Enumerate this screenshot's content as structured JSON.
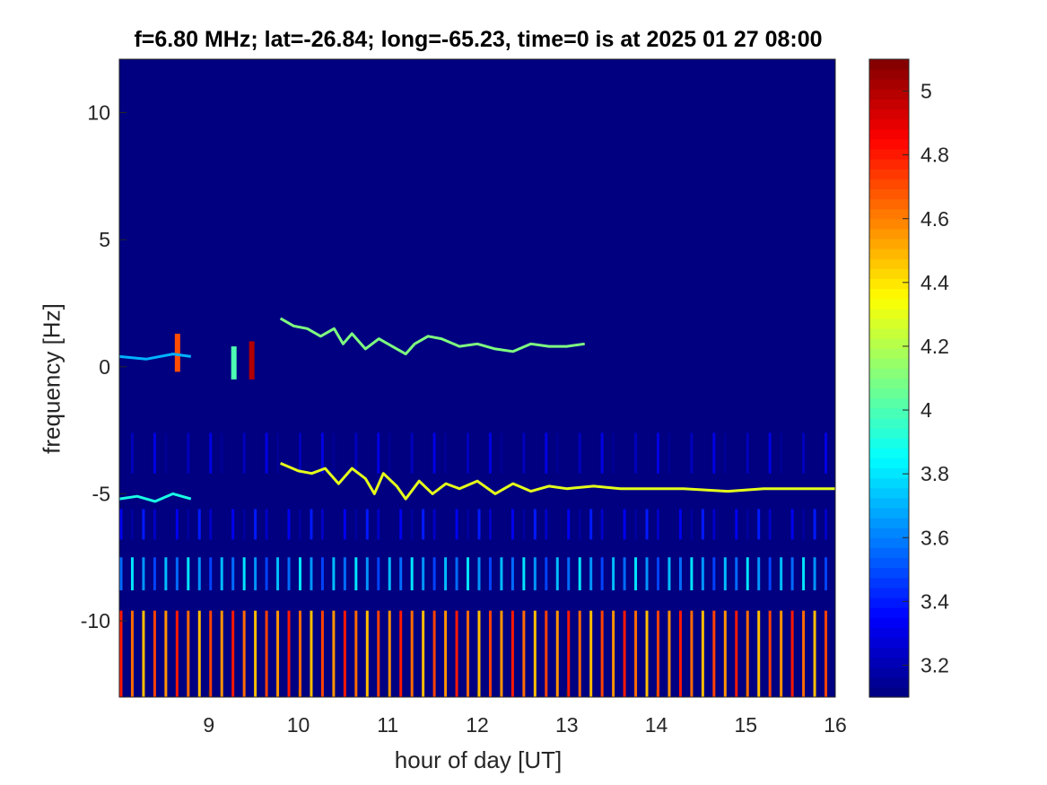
{
  "chart_data": {
    "type": "heatmap",
    "title": "f=6.80 MHz;  lat=-26.84; long=-65.23, time=0 is at 2025 01 27 08:00",
    "xlabel": "hour of day [UT]",
    "ylabel": "frequency [Hz]",
    "xlim": [
      8,
      16
    ],
    "ylim": [
      -13,
      12.1
    ],
    "xticks": [
      9,
      10,
      11,
      12,
      13,
      14,
      15,
      16
    ],
    "yticks": [
      -10,
      -5,
      0,
      5,
      10
    ],
    "xtick_labels": [
      "9",
      "10",
      "11",
      "12",
      "13",
      "14",
      "15",
      "16"
    ],
    "ytick_labels": [
      "-10",
      "-5",
      "0",
      "5",
      "10"
    ],
    "colormap": "jet",
    "clim": [
      3.1,
      5.1
    ],
    "colorbar_ticks": [
      3.2,
      3.4,
      3.6,
      3.8,
      4,
      4.2,
      4.4,
      4.6,
      4.8,
      5
    ],
    "colorbar_tick_labels": [
      "3.2",
      "3.4",
      "3.6",
      "3.8",
      "4",
      "4.2",
      "4.4",
      "4.6",
      "4.8",
      "5"
    ],
    "background_value": 3.1,
    "traces": [
      {
        "points": [
          [
            9.8,
            1.9
          ],
          [
            9.95,
            1.6
          ],
          [
            10.1,
            1.5
          ],
          [
            10.25,
            1.2
          ],
          [
            10.4,
            1.5
          ],
          [
            10.5,
            0.9
          ],
          [
            10.6,
            1.3
          ],
          [
            10.75,
            0.7
          ],
          [
            10.9,
            1.1
          ],
          [
            11.05,
            0.8
          ],
          [
            11.2,
            0.5
          ],
          [
            11.3,
            0.9
          ],
          [
            11.45,
            1.2
          ],
          [
            11.6,
            1.1
          ],
          [
            11.8,
            0.8
          ],
          [
            12.0,
            0.9
          ],
          [
            12.2,
            0.7
          ],
          [
            12.4,
            0.6
          ],
          [
            12.6,
            0.9
          ],
          [
            12.8,
            0.8
          ],
          [
            13.0,
            0.8
          ],
          [
            13.2,
            0.9
          ]
        ],
        "value": 4.1
      },
      {
        "points": [
          [
            9.8,
            -3.8
          ],
          [
            10.0,
            -4.1
          ],
          [
            10.15,
            -4.2
          ],
          [
            10.3,
            -4.0
          ],
          [
            10.45,
            -4.6
          ],
          [
            10.6,
            -4.0
          ],
          [
            10.75,
            -4.4
          ],
          [
            10.85,
            -5.0
          ],
          [
            10.95,
            -4.2
          ],
          [
            11.1,
            -4.7
          ],
          [
            11.2,
            -5.2
          ],
          [
            11.35,
            -4.5
          ],
          [
            11.5,
            -5.0
          ],
          [
            11.65,
            -4.6
          ],
          [
            11.8,
            -4.8
          ],
          [
            12.0,
            -4.5
          ],
          [
            12.2,
            -5.0
          ],
          [
            12.4,
            -4.6
          ],
          [
            12.6,
            -4.9
          ],
          [
            12.8,
            -4.7
          ],
          [
            13.0,
            -4.8
          ],
          [
            13.3,
            -4.7
          ],
          [
            13.6,
            -4.8
          ],
          [
            14.0,
            -4.8
          ],
          [
            14.3,
            -4.8
          ],
          [
            14.8,
            -4.9
          ],
          [
            15.2,
            -4.8
          ],
          [
            15.7,
            -4.8
          ],
          [
            16.0,
            -4.8
          ]
        ],
        "value": 4.3
      },
      {
        "points": [
          [
            8.0,
            -5.2
          ],
          [
            8.2,
            -5.1
          ],
          [
            8.4,
            -5.3
          ],
          [
            8.6,
            -5.0
          ],
          [
            8.8,
            -5.2
          ]
        ],
        "value": 3.9
      },
      {
        "points": [
          [
            8.0,
            0.4
          ],
          [
            8.3,
            0.3
          ],
          [
            8.6,
            0.5
          ],
          [
            8.8,
            0.4
          ]
        ],
        "value": 3.7
      }
    ],
    "bursts": [
      {
        "x": 8.65,
        "y_range": [
          -0.2,
          1.3
        ],
        "value": 4.7
      },
      {
        "x": 9.28,
        "y_range": [
          -0.5,
          0.8
        ],
        "value": 4.0
      },
      {
        "x": 9.48,
        "y_range": [
          -0.5,
          1.0
        ],
        "value": 5.0
      }
    ],
    "periodic_columns": {
      "x_start": 8.02,
      "x_end": 16.0,
      "spacing": 0.125,
      "bands": [
        {
          "y_range": [
            -13,
            -9.6
          ],
          "value": 4.8
        },
        {
          "y_range": [
            -8.8,
            -7.5
          ],
          "value": 3.8
        },
        {
          "y_range": [
            -6.8,
            -5.6
          ],
          "value": 3.4
        },
        {
          "y_range": [
            -4.2,
            -2.6
          ],
          "value": 3.3
        }
      ]
    }
  }
}
